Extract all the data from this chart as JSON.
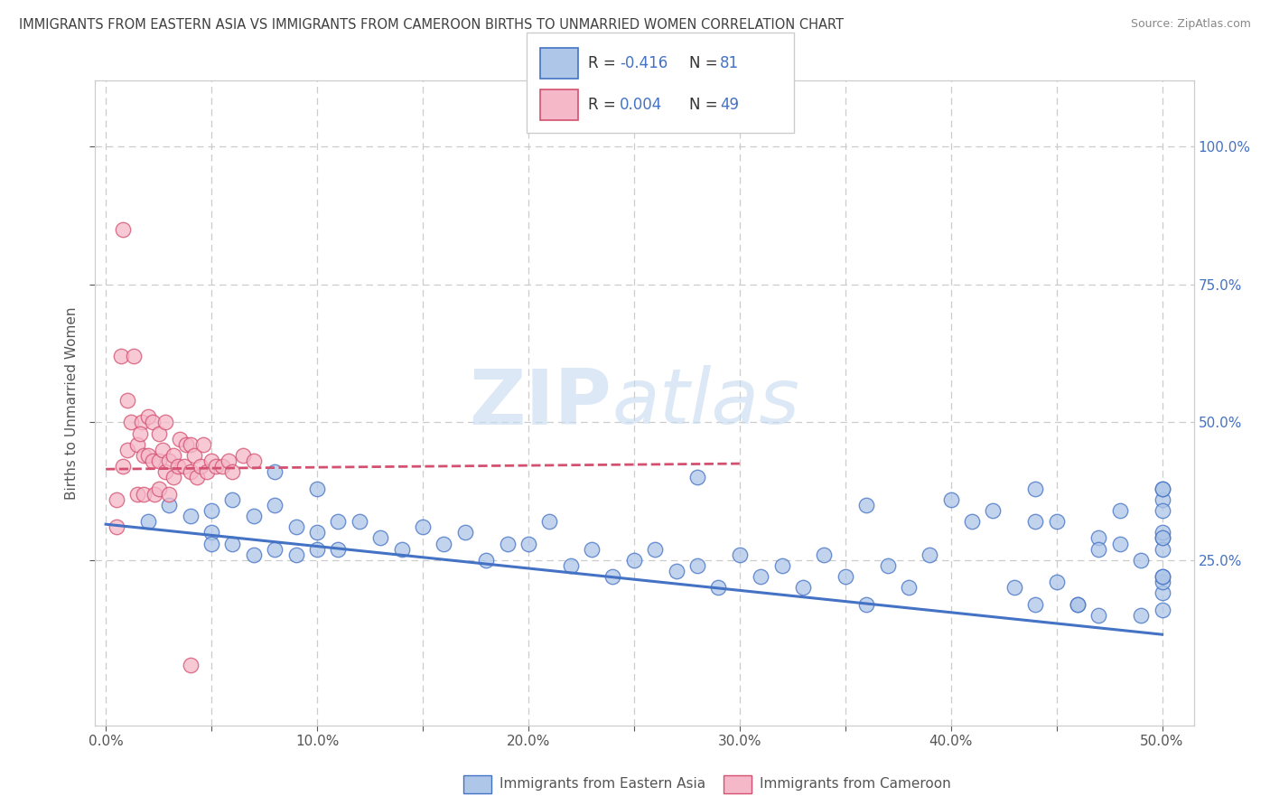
{
  "title": "IMMIGRANTS FROM EASTERN ASIA VS IMMIGRANTS FROM CAMEROON BIRTHS TO UNMARRIED WOMEN CORRELATION CHART",
  "source": "Source: ZipAtlas.com",
  "ylabel": "Births to Unmarried Women",
  "x_tick_labels": [
    "0.0%",
    "",
    "10.0%",
    "",
    "20.0%",
    "",
    "30.0%",
    "",
    "40.0%",
    "",
    "50.0%"
  ],
  "x_tick_values": [
    0.0,
    0.05,
    0.1,
    0.15,
    0.2,
    0.25,
    0.3,
    0.35,
    0.4,
    0.45,
    0.5
  ],
  "y_right_tick_labels": [
    "25.0%",
    "50.0%",
    "75.0%",
    "100.0%"
  ],
  "y_tick_values": [
    0.25,
    0.5,
    0.75,
    1.0
  ],
  "xlim": [
    -0.005,
    0.515
  ],
  "ylim": [
    -0.05,
    1.12
  ],
  "blue_fill": "#aec6e8",
  "blue_edge": "#4472c4",
  "pink_fill": "#f5b8c8",
  "pink_edge": "#d45070",
  "line_blue": "#4472c4",
  "line_pink": "#d45070",
  "watermark_zip": "ZIP",
  "watermark_atlas": "atlas",
  "blue_scatter_x": [
    0.02,
    0.03,
    0.04,
    0.05,
    0.05,
    0.05,
    0.06,
    0.06,
    0.07,
    0.07,
    0.08,
    0.08,
    0.09,
    0.09,
    0.1,
    0.1,
    0.11,
    0.11,
    0.12,
    0.13,
    0.14,
    0.15,
    0.16,
    0.17,
    0.18,
    0.19,
    0.2,
    0.21,
    0.22,
    0.23,
    0.24,
    0.25,
    0.26,
    0.27,
    0.28,
    0.29,
    0.3,
    0.31,
    0.32,
    0.33,
    0.34,
    0.35,
    0.36,
    0.37,
    0.38,
    0.39,
    0.4,
    0.41,
    0.42,
    0.43,
    0.44,
    0.45,
    0.46,
    0.47,
    0.48,
    0.49,
    0.5,
    0.08,
    0.1,
    0.28,
    0.36,
    0.44,
    0.44,
    0.45,
    0.46,
    0.47,
    0.47,
    0.48,
    0.49,
    0.5,
    0.5,
    0.5,
    0.5,
    0.5,
    0.5,
    0.5,
    0.5,
    0.5,
    0.5,
    0.5,
    0.5
  ],
  "blue_scatter_y": [
    0.32,
    0.35,
    0.33,
    0.3,
    0.28,
    0.34,
    0.36,
    0.28,
    0.33,
    0.26,
    0.35,
    0.27,
    0.31,
    0.26,
    0.3,
    0.27,
    0.32,
    0.27,
    0.32,
    0.29,
    0.27,
    0.31,
    0.28,
    0.3,
    0.25,
    0.28,
    0.28,
    0.32,
    0.24,
    0.27,
    0.22,
    0.25,
    0.27,
    0.23,
    0.24,
    0.2,
    0.26,
    0.22,
    0.24,
    0.2,
    0.26,
    0.22,
    0.17,
    0.24,
    0.2,
    0.26,
    0.36,
    0.32,
    0.34,
    0.2,
    0.17,
    0.21,
    0.17,
    0.29,
    0.34,
    0.25,
    0.19,
    0.41,
    0.38,
    0.4,
    0.35,
    0.32,
    0.38,
    0.32,
    0.17,
    0.27,
    0.15,
    0.28,
    0.15,
    0.21,
    0.36,
    0.29,
    0.27,
    0.34,
    0.3,
    0.38,
    0.22,
    0.16,
    0.38,
    0.29,
    0.22
  ],
  "pink_scatter_x": [
    0.005,
    0.005,
    0.007,
    0.008,
    0.01,
    0.01,
    0.012,
    0.013,
    0.015,
    0.015,
    0.017,
    0.018,
    0.018,
    0.02,
    0.02,
    0.022,
    0.022,
    0.023,
    0.025,
    0.025,
    0.025,
    0.027,
    0.028,
    0.028,
    0.03,
    0.03,
    0.032,
    0.032,
    0.034,
    0.035,
    0.037,
    0.038,
    0.04,
    0.04,
    0.042,
    0.043,
    0.045,
    0.046,
    0.048,
    0.05,
    0.052,
    0.055,
    0.058,
    0.06,
    0.065,
    0.07,
    0.008,
    0.016,
    0.04
  ],
  "pink_scatter_y": [
    0.36,
    0.31,
    0.62,
    0.42,
    0.54,
    0.45,
    0.5,
    0.62,
    0.46,
    0.37,
    0.5,
    0.44,
    0.37,
    0.51,
    0.44,
    0.5,
    0.43,
    0.37,
    0.48,
    0.43,
    0.38,
    0.45,
    0.5,
    0.41,
    0.43,
    0.37,
    0.44,
    0.4,
    0.42,
    0.47,
    0.42,
    0.46,
    0.46,
    0.41,
    0.44,
    0.4,
    0.42,
    0.46,
    0.41,
    0.43,
    0.42,
    0.42,
    0.43,
    0.41,
    0.44,
    0.43,
    0.85,
    0.48,
    0.06
  ],
  "blue_line_x": [
    0.0,
    0.5
  ],
  "blue_line_y": [
    0.315,
    0.115
  ],
  "pink_line_x": [
    0.0,
    0.3
  ],
  "pink_line_y": [
    0.415,
    0.425
  ],
  "background_color": "#ffffff",
  "grid_color": "#cccccc",
  "title_color": "#404040",
  "bottom_label1": "Immigrants from Eastern Asia",
  "bottom_label2": "Immigrants from Cameroon"
}
